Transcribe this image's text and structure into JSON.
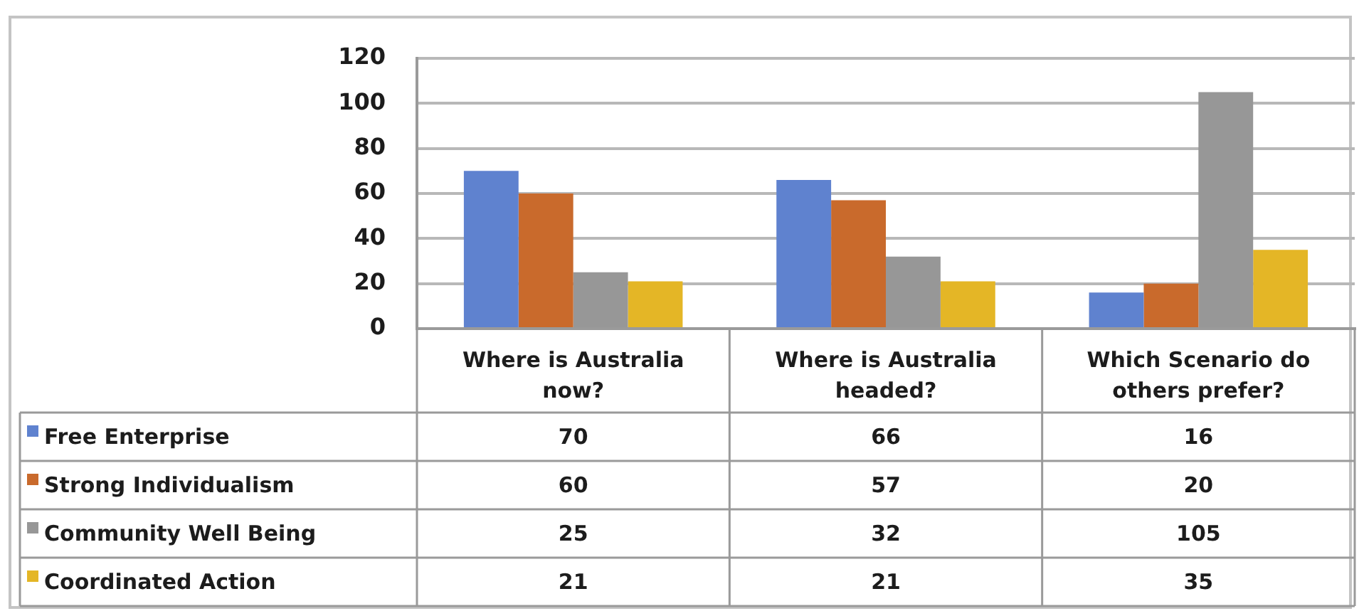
{
  "chart_data": {
    "type": "bar",
    "categories": [
      "Where is Australia now?",
      "Where is Australia headed?",
      "Which Scenario do others prefer?"
    ],
    "series": [
      {
        "name": "Free Enterprise",
        "color": "#5f82cf",
        "values": [
          70,
          66,
          16
        ]
      },
      {
        "name": "Strong Individualism",
        "color": "#c96a2c",
        "values": [
          60,
          57,
          20
        ]
      },
      {
        "name": "Community Well Being",
        "color": "#979797",
        "values": [
          25,
          32,
          105
        ]
      },
      {
        "name": "Coordinated Action",
        "color": "#e4b626",
        "values": [
          21,
          21,
          35
        ]
      }
    ],
    "ylim": [
      0,
      120
    ],
    "yticks": [
      0,
      20,
      40,
      60,
      80,
      100,
      120
    ],
    "grid": "y",
    "legend": "bottom left",
    "data_labels": true
  }
}
